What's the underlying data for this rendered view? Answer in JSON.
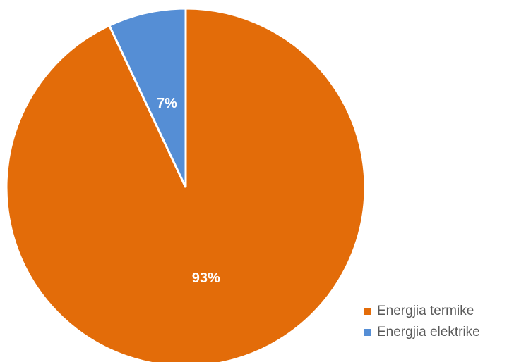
{
  "chart_data": {
    "type": "pie",
    "title": "",
    "slices": [
      {
        "label": "Energjia termike",
        "value": 93,
        "display": "93%",
        "color": "#E36C09"
      },
      {
        "label": "Energjia elektrike",
        "value": 7,
        "display": "7%",
        "color": "#558ED5"
      }
    ],
    "start_angle": "12 o'clock",
    "direction": "clockwise",
    "legend_position": "bottom-right"
  }
}
